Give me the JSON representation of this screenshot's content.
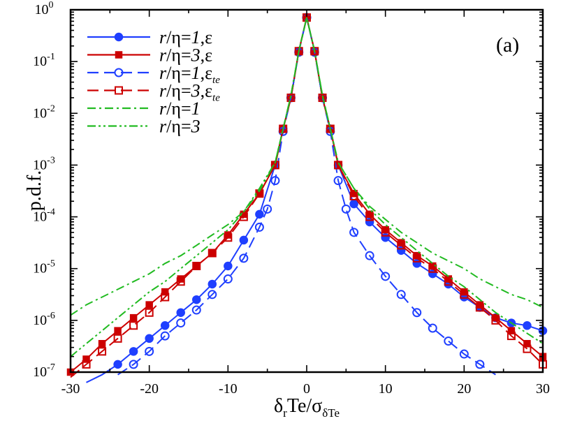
{
  "chart_data": {
    "type": "line",
    "title": "",
    "panel_label": "(a)",
    "xlabel": {
      "main": "δ",
      "sub1": "r",
      "mid": "Te/σ",
      "sub2": "δTe"
    },
    "ylabel": "p.d.f.",
    "xlim": [
      -30,
      30
    ],
    "ylim_log10": [
      -7,
      0
    ],
    "y_scale": "log",
    "x_ticks": [
      -30,
      -20,
      -10,
      0,
      10,
      20,
      30
    ],
    "x_tick_labels": [
      "-30",
      "-20",
      "-10",
      "0",
      "10",
      "20",
      "30"
    ],
    "y_tick_labels": [
      {
        "base": "10",
        "exp": "0"
      },
      {
        "base": "10",
        "exp": "-1"
      },
      {
        "base": "10",
        "exp": "-2"
      },
      {
        "base": "10",
        "exp": "-3"
      },
      {
        "base": "10",
        "exp": "-4"
      },
      {
        "base": "10",
        "exp": "-5"
      },
      {
        "base": "10",
        "exp": "-6"
      },
      {
        "base": "10",
        "exp": "-7"
      }
    ],
    "legend_position": "top-left",
    "series": [
      {
        "name": "r/η=1,ε",
        "legend": {
          "r": "r",
          "eta": "/η=",
          "num": "1",
          "sep": ",",
          "eps": "ε",
          "sub": ""
        },
        "color": "#1f3fff",
        "dash": "solid",
        "marker": "filled-circle",
        "x": [
          -28,
          -26,
          -24,
          -22,
          -20,
          -18,
          -16,
          -14,
          -12,
          -10,
          -8,
          -6,
          -4,
          -3,
          -2,
          -1,
          0,
          1,
          2,
          3,
          4,
          6,
          8,
          10,
          12,
          14,
          16,
          18,
          20,
          22,
          24,
          26,
          28,
          30
        ],
        "log10_y": [
          -7.2,
          -7.05,
          -6.85,
          -6.6,
          -6.35,
          -6.1,
          -5.85,
          -5.6,
          -5.3,
          -4.95,
          -4.45,
          -3.95,
          -3.0,
          -2.3,
          -1.7,
          -0.8,
          -0.15,
          -0.8,
          -1.7,
          -2.3,
          -3.0,
          -3.75,
          -4.1,
          -4.4,
          -4.65,
          -4.9,
          -5.1,
          -5.3,
          -5.55,
          -5.75,
          -5.95,
          -6.05,
          -6.1,
          -6.2
        ]
      },
      {
        "name": "r/η=3,ε",
        "legend": {
          "r": "r",
          "eta": "/η=",
          "num": "3",
          "sep": ",",
          "eps": "ε",
          "sub": ""
        },
        "color": "#cc0000",
        "dash": "solid",
        "marker": "filled-square",
        "x": [
          -30,
          -28,
          -26,
          -24,
          -22,
          -20,
          -18,
          -16,
          -14,
          -12,
          -10,
          -8,
          -6,
          -4,
          -3,
          -2,
          -1,
          0,
          1,
          2,
          3,
          4,
          6,
          8,
          10,
          12,
          14,
          16,
          18,
          20,
          22,
          24,
          26,
          28,
          30
        ],
        "log10_y": [
          -7.0,
          -6.75,
          -6.45,
          -6.2,
          -5.95,
          -5.7,
          -5.45,
          -5.2,
          -4.95,
          -4.7,
          -4.35,
          -3.95,
          -3.55,
          -3.0,
          -2.3,
          -1.7,
          -0.8,
          -0.15,
          -0.8,
          -1.7,
          -2.3,
          -3.0,
          -3.55,
          -3.95,
          -4.25,
          -4.5,
          -4.75,
          -4.95,
          -5.2,
          -5.45,
          -5.7,
          -5.95,
          -6.2,
          -6.45,
          -6.7
        ]
      },
      {
        "name": "r/η=1,ε_te",
        "legend": {
          "r": "r",
          "eta": "/η=",
          "num": "1",
          "sep": ",",
          "eps": "ε",
          "sub": "te"
        },
        "color": "#1f3fff",
        "dash": "dashed",
        "marker": "open-circle",
        "x": [
          -24,
          -22,
          -20,
          -18,
          -16,
          -14,
          -12,
          -10,
          -8,
          -6,
          -5,
          -4,
          -3,
          -2,
          -1,
          0,
          1,
          2,
          3,
          4,
          5,
          6,
          8,
          10,
          12,
          14,
          16,
          18,
          20,
          22,
          24
        ],
        "log10_y": [
          -7.05,
          -6.85,
          -6.6,
          -6.3,
          -6.05,
          -5.8,
          -5.5,
          -5.2,
          -4.8,
          -4.2,
          -3.85,
          -3.3,
          -2.35,
          -1.7,
          -0.82,
          -0.15,
          -0.82,
          -1.7,
          -2.35,
          -3.3,
          -3.85,
          -4.3,
          -4.75,
          -5.15,
          -5.5,
          -5.85,
          -6.15,
          -6.4,
          -6.65,
          -6.85,
          -7.05
        ]
      },
      {
        "name": "r/η=3,ε_te",
        "legend": {
          "r": "r",
          "eta": "/η=",
          "num": "3",
          "sep": ",",
          "eps": "ε",
          "sub": "te"
        },
        "color": "#cc0000",
        "dash": "dashed",
        "marker": "open-square",
        "x": [
          -30,
          -28,
          -26,
          -24,
          -22,
          -20,
          -18,
          -16,
          -14,
          -12,
          -10,
          -8,
          -6,
          -4,
          -3,
          -2,
          -1,
          0,
          1,
          2,
          3,
          4,
          6,
          8,
          10,
          12,
          14,
          16,
          18,
          20,
          22,
          24,
          26,
          28,
          30
        ],
        "log10_y": [
          -7.1,
          -6.85,
          -6.6,
          -6.35,
          -6.1,
          -5.85,
          -5.55,
          -5.25,
          -4.95,
          -4.7,
          -4.4,
          -4.0,
          -3.55,
          -3.0,
          -2.3,
          -1.7,
          -0.8,
          -0.15,
          -0.8,
          -1.7,
          -2.3,
          -3.0,
          -3.6,
          -4.0,
          -4.3,
          -4.55,
          -4.8,
          -5.0,
          -5.25,
          -5.5,
          -5.75,
          -6.0,
          -6.3,
          -6.55,
          -6.85
        ]
      },
      {
        "name": "r/η=1",
        "legend": {
          "r": "r",
          "eta": "/η=",
          "num": "1",
          "sep": "",
          "eps": "",
          "sub": ""
        },
        "color": "#22bb22",
        "dash": "dashdot",
        "marker": "none",
        "x": [
          -30,
          -28,
          -26,
          -24,
          -22,
          -20,
          -18,
          -16,
          -14,
          -12,
          -10,
          -8,
          -6,
          -4,
          -3,
          -2,
          -1,
          0,
          1,
          2,
          3,
          4,
          6,
          8,
          10,
          12,
          14,
          16,
          18,
          20,
          22,
          24,
          26,
          28,
          30
        ],
        "log10_y": [
          -5.9,
          -5.7,
          -5.55,
          -5.4,
          -5.25,
          -5.1,
          -4.9,
          -4.75,
          -4.55,
          -4.35,
          -4.15,
          -3.9,
          -3.5,
          -2.95,
          -2.3,
          -1.65,
          -0.8,
          -0.15,
          -0.8,
          -1.65,
          -2.3,
          -2.95,
          -3.45,
          -3.8,
          -4.05,
          -4.3,
          -4.5,
          -4.7,
          -4.85,
          -5.0,
          -5.2,
          -5.35,
          -5.5,
          -5.6,
          -5.75
        ]
      },
      {
        "name": "r/η=3",
        "legend": {
          "r": "r",
          "eta": "/η=",
          "num": "3",
          "sep": "",
          "eps": "",
          "sub": ""
        },
        "color": "#22bb22",
        "dash": "dashdotdot",
        "marker": "none",
        "x": [
          -30,
          -28,
          -26,
          -24,
          -22,
          -20,
          -18,
          -16,
          -14,
          -12,
          -10,
          -8,
          -6,
          -4,
          -3,
          -2,
          -1,
          0,
          1,
          2,
          3,
          4,
          6,
          8,
          10,
          12,
          14,
          16,
          18,
          20,
          22,
          24,
          26,
          28,
          30
        ],
        "log10_y": [
          -6.7,
          -6.45,
          -6.2,
          -5.95,
          -5.7,
          -5.45,
          -5.25,
          -5.0,
          -4.75,
          -4.5,
          -4.25,
          -3.9,
          -3.45,
          -2.95,
          -2.3,
          -1.65,
          -0.8,
          -0.15,
          -0.8,
          -1.65,
          -2.3,
          -2.95,
          -3.45,
          -3.85,
          -4.15,
          -4.4,
          -4.65,
          -4.9,
          -5.15,
          -5.35,
          -5.6,
          -5.85,
          -6.05,
          -6.25,
          -6.45
        ]
      }
    ]
  }
}
